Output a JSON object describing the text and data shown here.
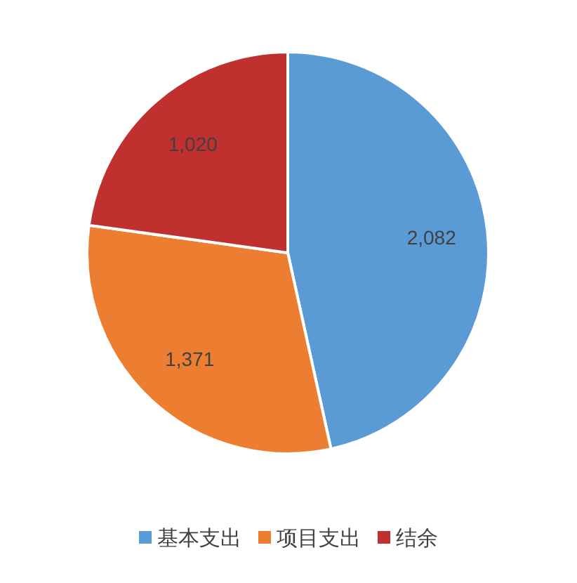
{
  "chart_data": {
    "type": "pie",
    "categories": [
      "基本支出",
      "项目支出",
      "结余"
    ],
    "values": [
      2082,
      1371,
      1020
    ],
    "colors": [
      "#5b9bd5",
      "#ed7d31",
      "#c0302f"
    ],
    "value_labels": [
      "2,082",
      "1,371",
      "1,020"
    ],
    "legend": "bottom"
  }
}
